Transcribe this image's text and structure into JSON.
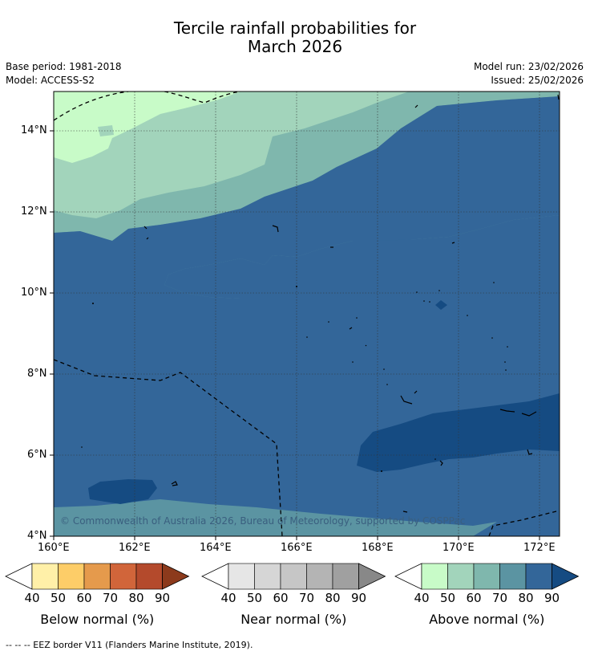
{
  "title_line1": "Tercile rainfall probabilities for",
  "title_line2": "March 2026",
  "base_period": "Base period: 1981-2018",
  "model": "Model: ACCESS-S2",
  "model_run": "Model run: 23/02/2026",
  "issued": "Issued: 25/02/2026",
  "copyright": "© Commonwealth of Australia 2026, Bureau of Meteorology, supported by COSPPac",
  "lat_labels": [
    "14°N",
    "12°N",
    "10°N",
    "8°N",
    "6°N",
    "4°N"
  ],
  "lon_labels": [
    "160°E",
    "162°E",
    "164°E",
    "166°E",
    "168°E",
    "170°E",
    "172°E"
  ],
  "colorbars": [
    {
      "title": "Below normal (%)",
      "ticks": [
        "40",
        "50",
        "60",
        "70",
        "80",
        "90"
      ],
      "colors": [
        "#fff0a8",
        "#fdcd68",
        "#e59a4c",
        "#d1653a",
        "#b44a2c",
        "#8c3a1c"
      ],
      "low": "#ffffff"
    },
    {
      "title": "Near normal (%)",
      "ticks": [
        "40",
        "50",
        "60",
        "70",
        "80",
        "90"
      ],
      "colors": [
        "#e6e6e6",
        "#d6d6d6",
        "#c6c6c6",
        "#b4b4b4",
        "#a0a0a0",
        "#888888"
      ],
      "low": "#ffffff"
    },
    {
      "title": "Above normal (%)",
      "ticks": [
        "40",
        "50",
        "60",
        "70",
        "80",
        "90"
      ],
      "colors": [
        "#c8fbc8",
        "#a2d4bb",
        "#7fb7ad",
        "#5b94a2",
        "#336699",
        "#154b82"
      ],
      "low": "#ffffff"
    }
  ],
  "footnote": "--  --  -- EEZ border V11 (Flanders Marine Institute, 2019)."
}
